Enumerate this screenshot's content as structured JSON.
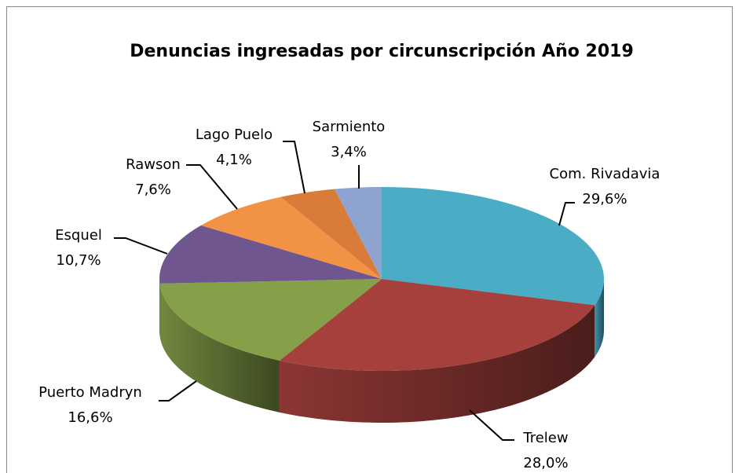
{
  "chart_data": {
    "type": "pie3d",
    "title": "Denuncias ingresadas por circunscripción Año 2019",
    "categories": [
      "Com. Rivadavia",
      "Trelew",
      "Puerto Madryn",
      "Esquel",
      "Rawson",
      "Lago Puelo",
      "Sarmiento"
    ],
    "values": [
      29.6,
      28.0,
      16.6,
      10.7,
      7.6,
      4.1,
      3.4
    ],
    "value_labels": [
      "29,6%",
      "28,0%",
      "16,6%",
      "10,7%",
      "7,6%",
      "4,1%",
      "3,4%"
    ],
    "colors": [
      "#4bacc6",
      "#a5403d",
      "#86a04a",
      "#6f568f",
      "#f19245",
      "#d97c3a",
      "#8fa3d0"
    ]
  }
}
